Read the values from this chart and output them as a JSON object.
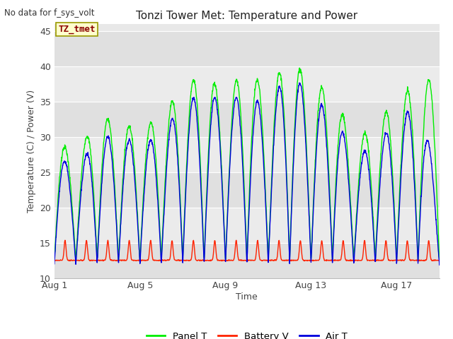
{
  "title": "Tonzi Tower Met: Temperature and Power",
  "xlabel": "Time",
  "ylabel": "Temperature (C) / Power (V)",
  "ylim": [
    10,
    46
  ],
  "yticks": [
    10,
    15,
    20,
    25,
    30,
    35,
    40,
    45
  ],
  "no_data_text": "No data for f_sys_volt",
  "legend_label_text": "TZ_tmet",
  "xtick_labels": [
    "Aug 1",
    "Aug 5",
    "Aug 9",
    "Aug 13",
    "Aug 17"
  ],
  "xtick_positions": [
    0,
    4,
    8,
    12,
    16
  ],
  "xlim": [
    0,
    18
  ],
  "background_color": "#ffffff",
  "plot_bg_color": "#e8e8e8",
  "band_light_color": "#f0f0f0",
  "band_dark_color": "#d8d8d8",
  "grid_color": "#ffffff",
  "panel_color": "#00ee00",
  "battery_color": "#ff2200",
  "air_color": "#0000dd",
  "legend_labels": [
    "Panel T",
    "Battery V",
    "Air T"
  ],
  "days": 18,
  "pts_per_day": 96
}
